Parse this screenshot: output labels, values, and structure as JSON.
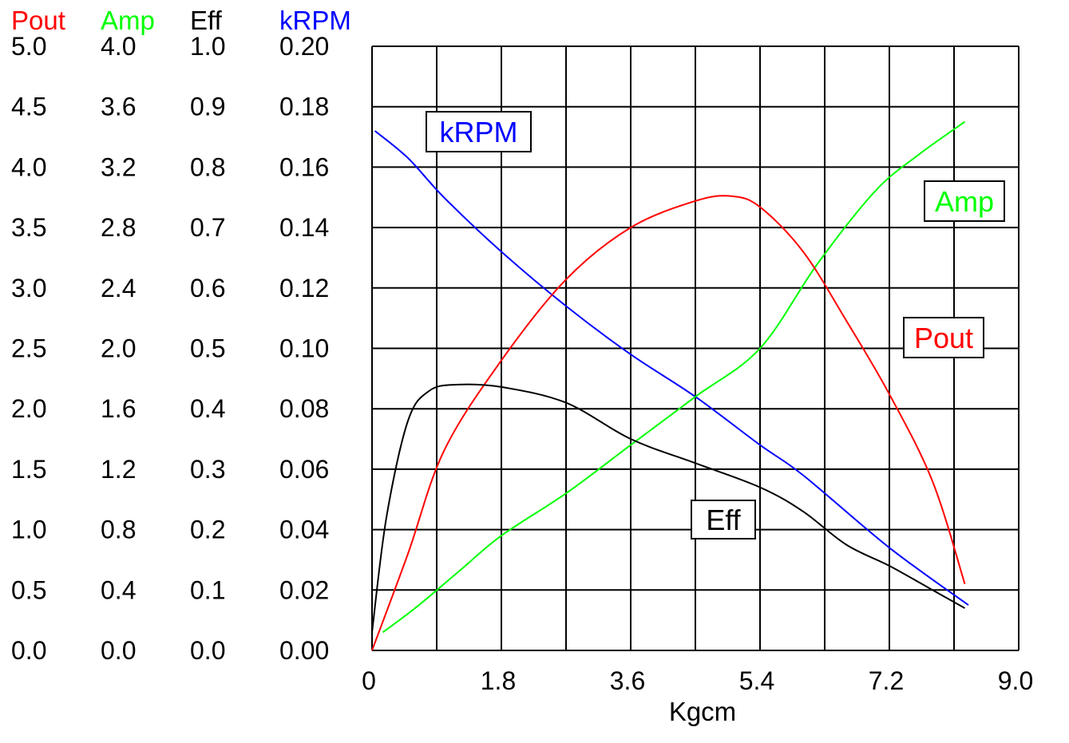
{
  "chart_data": {
    "type": "line",
    "title": "",
    "xlabel": "Kgcm",
    "xlim": [
      0,
      9.0
    ],
    "x_ticks": [
      "0",
      "1.8",
      "3.6",
      "5.4",
      "7.2",
      "9.0"
    ],
    "grid": true,
    "axes": [
      {
        "key": "pout",
        "label": "Pout",
        "color": "#ff0000",
        "ylim": [
          0,
          5.0
        ],
        "ticks": [
          "5.0",
          "4.5",
          "4.0",
          "3.5",
          "3.0",
          "2.5",
          "2.0",
          "1.5",
          "1.0",
          "0.5",
          "0.0"
        ]
      },
      {
        "key": "amp",
        "label": "Amp",
        "color": "#00ff00",
        "ylim": [
          0,
          4.0
        ],
        "ticks": [
          "4.0",
          "3.6",
          "3.2",
          "2.8",
          "2.4",
          "2.0",
          "1.6",
          "1.2",
          "0.8",
          "0.4",
          "0.0"
        ]
      },
      {
        "key": "eff",
        "label": "Eff",
        "color": "#000000",
        "ylim": [
          0,
          1.0
        ],
        "ticks": [
          "1.0",
          "0.9",
          "0.8",
          "0.7",
          "0.6",
          "0.5",
          "0.4",
          "0.3",
          "0.2",
          "0.1",
          "0.0"
        ]
      },
      {
        "key": "krpm",
        "label": "kRPM",
        "color": "#0000ff",
        "ylim": [
          0,
          0.2
        ],
        "ticks": [
          "0.20",
          "0.18",
          "0.16",
          "0.14",
          "0.12",
          "0.10",
          "0.08",
          "0.06",
          "0.04",
          "0.02",
          "0.00"
        ]
      }
    ],
    "series": [
      {
        "name": "kRPM",
        "axis": "krpm",
        "color": "#0000ff",
        "x": [
          0.04,
          0.5,
          1.0,
          1.8,
          2.7,
          3.6,
          4.5,
          5.4,
          6.0,
          7.2,
          8.3
        ],
        "y": [
          0.172,
          0.163,
          0.15,
          0.132,
          0.114,
          0.098,
          0.084,
          0.068,
          0.058,
          0.034,
          0.015
        ]
      },
      {
        "name": "Amp",
        "axis": "amp",
        "color": "#00ff00",
        "x": [
          0.15,
          0.6,
          1.2,
          1.8,
          2.7,
          3.6,
          4.5,
          5.4,
          6.2,
          7.0,
          7.6,
          8.25
        ],
        "y": [
          0.12,
          0.28,
          0.52,
          0.76,
          1.04,
          1.36,
          1.68,
          2.0,
          2.56,
          3.04,
          3.28,
          3.5
        ]
      },
      {
        "name": "Pout",
        "axis": "pout",
        "color": "#ff0000",
        "x": [
          0,
          0.5,
          1.0,
          1.8,
          2.7,
          3.6,
          4.5,
          5.0,
          5.4,
          6.0,
          6.6,
          7.2,
          7.8,
          8.25
        ],
        "y": [
          0.0,
          0.8,
          1.65,
          2.4,
          3.07,
          3.5,
          3.72,
          3.76,
          3.67,
          3.3,
          2.73,
          2.12,
          1.4,
          0.55
        ]
      },
      {
        "name": "Eff",
        "axis": "eff",
        "color": "#000000",
        "x": [
          0,
          0.2,
          0.5,
          0.8,
          1.2,
          1.8,
          2.7,
          3.6,
          4.5,
          5.4,
          6.0,
          6.6,
          7.2,
          7.8,
          8.25
        ],
        "y": [
          0.03,
          0.22,
          0.38,
          0.43,
          0.44,
          0.436,
          0.41,
          0.35,
          0.31,
          0.27,
          0.23,
          0.175,
          0.14,
          0.1,
          0.07
        ]
      }
    ],
    "callouts": [
      {
        "series": "kRPM",
        "text": "kRPM",
        "color": "#0000ff"
      },
      {
        "series": "Amp",
        "text": "Amp",
        "color": "#00ff00"
      },
      {
        "series": "Pout",
        "text": "Pout",
        "color": "#ff0000"
      },
      {
        "series": "Eff",
        "text": "Eff",
        "color": "#000000"
      }
    ]
  }
}
